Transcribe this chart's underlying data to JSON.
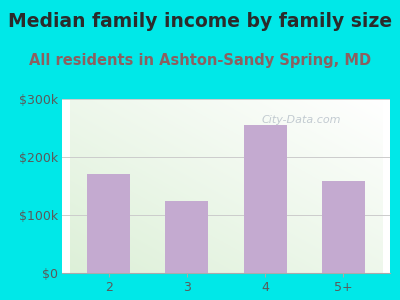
{
  "title": "Median family income by family size",
  "subtitle": "All residents in Ashton-Sandy Spring, MD",
  "categories": [
    "2",
    "3",
    "4",
    "5+"
  ],
  "values": [
    170000,
    125000,
    255000,
    158000
  ],
  "bar_color": "#c4aad0",
  "ylim": [
    0,
    300000
  ],
  "yticks": [
    0,
    100000,
    200000,
    300000
  ],
  "ytick_labels": [
    "$0",
    "$100k",
    "$200k",
    "$300k"
  ],
  "title_fontsize": 13.5,
  "subtitle_fontsize": 10.5,
  "tick_fontsize": 9,
  "bg_outer": "#00e8e8",
  "bg_plot_top_left": "#ddf0d8",
  "bg_plot_bottom_right": "#ffffff",
  "watermark": "City-Data.com",
  "title_color": "#2b2b2b",
  "subtitle_color": "#8b6060",
  "tick_color": "#5a5a5a",
  "grid_color": "#cccccc",
  "axis_color": "#aaaaaa"
}
